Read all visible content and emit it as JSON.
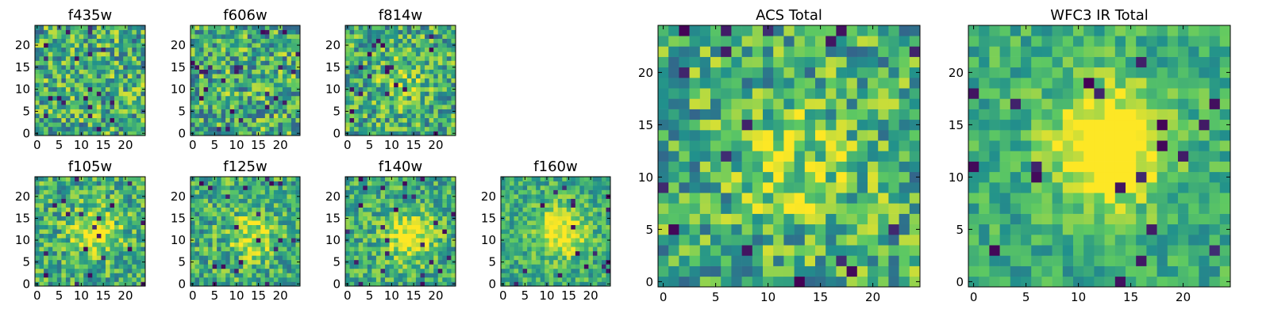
{
  "colormap": [
    "#440154",
    "#3b528b",
    "#21918c",
    "#5ec962",
    "#fde725"
  ],
  "chart_data": [
    {
      "type": "heatmap",
      "title": "f435w",
      "size": 25,
      "xlim": [
        0,
        24
      ],
      "ylim": [
        0,
        24
      ],
      "xticks": [
        0,
        5,
        10,
        15,
        20
      ],
      "yticks": [
        0,
        5,
        10,
        15,
        20
      ],
      "blob": 0.0,
      "noise": 0.55,
      "seed": 11,
      "center": [
        12,
        12
      ]
    },
    {
      "type": "heatmap",
      "title": "f606w",
      "size": 25,
      "xlim": [
        0,
        24
      ],
      "ylim": [
        0,
        24
      ],
      "xticks": [
        0,
        5,
        10,
        15,
        20
      ],
      "yticks": [
        0,
        5,
        10,
        15,
        20
      ],
      "blob": 0.0,
      "noise": 0.55,
      "seed": 23,
      "center": [
        12,
        12
      ]
    },
    {
      "type": "heatmap",
      "title": "f814w",
      "size": 25,
      "xlim": [
        0,
        24
      ],
      "ylim": [
        0,
        24
      ],
      "xticks": [
        0,
        5,
        10,
        15,
        20
      ],
      "yticks": [
        0,
        5,
        10,
        15,
        20
      ],
      "blob": 0.15,
      "noise": 0.5,
      "seed": 37,
      "center": [
        12,
        12
      ]
    },
    {
      "type": "heatmap",
      "title": "f105w",
      "size": 25,
      "xlim": [
        0,
        24
      ],
      "ylim": [
        0,
        24
      ],
      "xticks": [
        0,
        5,
        10,
        15,
        20
      ],
      "yticks": [
        0,
        5,
        10,
        15,
        20
      ],
      "blob": 0.35,
      "noise": 0.45,
      "seed": 41,
      "center": [
        13,
        12
      ]
    },
    {
      "type": "heatmap",
      "title": "f125w",
      "size": 25,
      "xlim": [
        0,
        24
      ],
      "ylim": [
        0,
        24
      ],
      "xticks": [
        0,
        5,
        10,
        15,
        20
      ],
      "yticks": [
        0,
        5,
        10,
        15,
        20
      ],
      "blob": 0.3,
      "noise": 0.45,
      "seed": 53,
      "center": [
        14,
        11
      ]
    },
    {
      "type": "heatmap",
      "title": "f140w",
      "size": 25,
      "xlim": [
        0,
        24
      ],
      "ylim": [
        0,
        24
      ],
      "xticks": [
        0,
        5,
        10,
        15,
        20
      ],
      "yticks": [
        0,
        5,
        10,
        15,
        20
      ],
      "blob": 0.4,
      "noise": 0.4,
      "seed": 67,
      "center": [
        14,
        11
      ]
    },
    {
      "type": "heatmap",
      "title": "f160w",
      "size": 25,
      "xlim": [
        0,
        24
      ],
      "ylim": [
        0,
        24
      ],
      "xticks": [
        0,
        5,
        10,
        15,
        20
      ],
      "yticks": [
        0,
        5,
        10,
        15,
        20
      ],
      "blob": 0.45,
      "noise": 0.35,
      "seed": 79,
      "center": [
        13,
        12
      ]
    },
    {
      "type": "heatmap",
      "title": "ACS Total",
      "size": 25,
      "xlim": [
        0,
        24
      ],
      "ylim": [
        0,
        24
      ],
      "xticks": [
        0,
        5,
        10,
        15,
        20
      ],
      "yticks": [
        0,
        5,
        10,
        15,
        20
      ],
      "blob": 0.25,
      "noise": 0.5,
      "seed": 97,
      "center": [
        13,
        11
      ]
    },
    {
      "type": "heatmap",
      "title": "WFC3 IR Total",
      "size": 25,
      "xlim": [
        0,
        24
      ],
      "ylim": [
        0,
        24
      ],
      "xticks": [
        0,
        5,
        10,
        15,
        20
      ],
      "yticks": [
        0,
        5,
        10,
        15,
        20
      ],
      "blob": 0.6,
      "noise": 0.3,
      "seed": 131,
      "center": [
        13,
        13
      ]
    }
  ]
}
